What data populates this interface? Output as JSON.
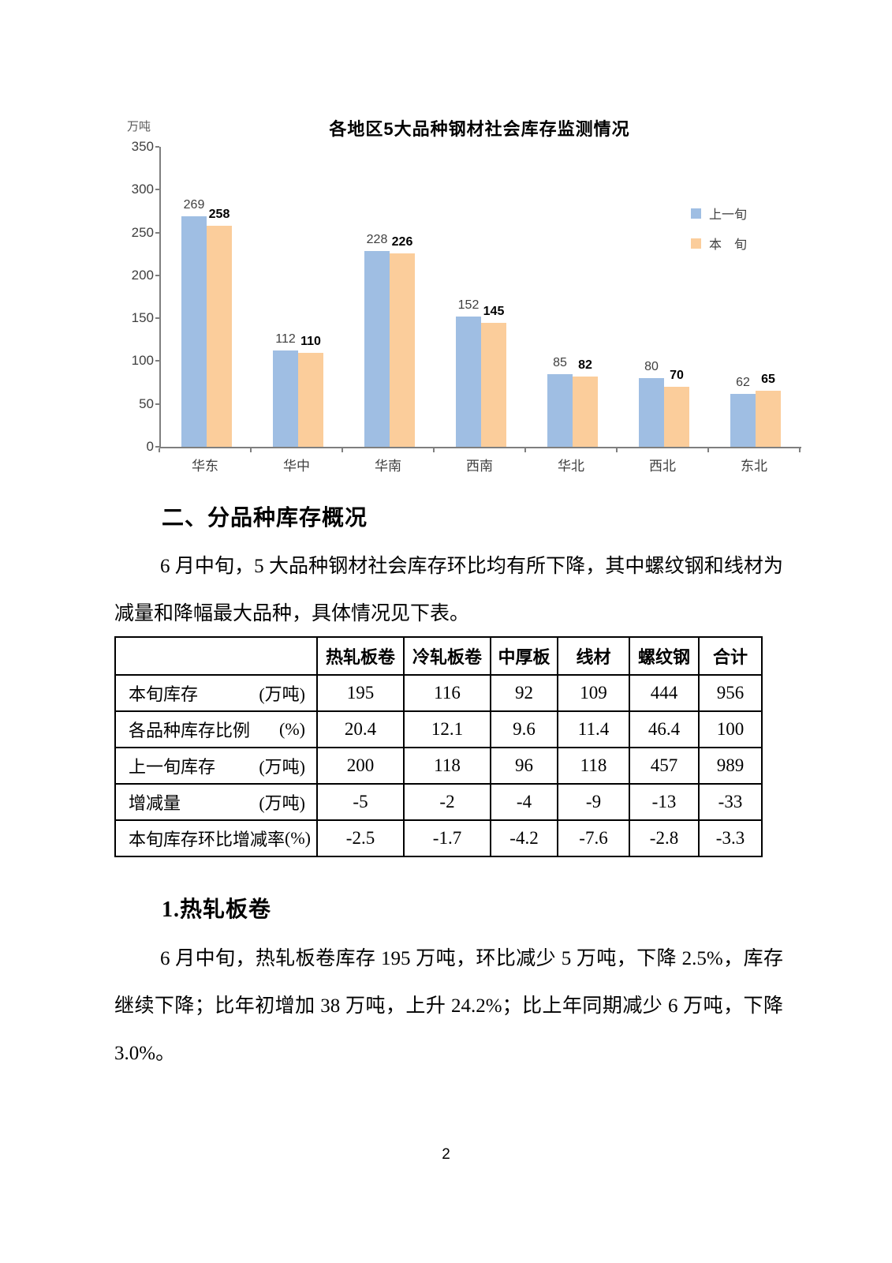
{
  "chart_data": {
    "type": "bar",
    "title": "各地区5大品种钢材社会库存监测情况",
    "unit_label": "万吨",
    "categories": [
      "华东",
      "华中",
      "华南",
      "西南",
      "华北",
      "西北",
      "东北"
    ],
    "series": [
      {
        "name": "上一旬",
        "color": "#9FBEE3",
        "values": [
          269,
          112,
          228,
          152,
          85,
          80,
          62
        ]
      },
      {
        "name": "本　旬",
        "color": "#FBCD9B",
        "values": [
          258,
          110,
          226,
          145,
          82,
          70,
          65
        ]
      }
    ],
    "ylim": [
      0,
      350
    ],
    "ytick_step": 50,
    "grid": false,
    "legend_position": "right-inside"
  },
  "section2": {
    "heading": "二、分品种库存概况",
    "paragraph": "6 月中旬，5 大品种钢材社会库存环比均有所下降，其中螺纹钢和线材为减量和降幅最大品种，具体情况见下表。"
  },
  "table": {
    "col_headers": [
      "",
      "热轧板卷",
      "冷轧板卷",
      "中厚板",
      "线材",
      "螺纹钢",
      "合计"
    ],
    "rows": [
      {
        "label": "本旬库存",
        "unit": "(万吨)",
        "values": [
          "195",
          "116",
          "92",
          "109",
          "444",
          "956"
        ]
      },
      {
        "label": "各品种库存比例",
        "unit": "(%)",
        "values": [
          "20.4",
          "12.1",
          "9.6",
          "11.4",
          "46.4",
          "100"
        ]
      },
      {
        "label": "上一旬库存",
        "unit": "(万吨)",
        "values": [
          "200",
          "118",
          "96",
          "118",
          "457",
          "989"
        ]
      },
      {
        "label": "增减量",
        "unit": "(万吨)",
        "values": [
          "-5",
          "-2",
          "-4",
          "-9",
          "-13",
          "-33"
        ]
      },
      {
        "label": "本旬库存环比增减率",
        "unit": "(%)",
        "values": [
          "-2.5",
          "-1.7",
          "-4.2",
          "-7.6",
          "-2.8",
          "-3.3"
        ]
      }
    ]
  },
  "section3": {
    "heading": "1.热轧板卷",
    "paragraph": "6 月中旬，热轧板卷库存 195 万吨，环比减少 5 万吨，下降 2.5%，库存继续下降；比年初增加 38 万吨，上升 24.2%；比上年同期减少 6 万吨，下降 3.0%。"
  },
  "page": {
    "number": "2"
  }
}
